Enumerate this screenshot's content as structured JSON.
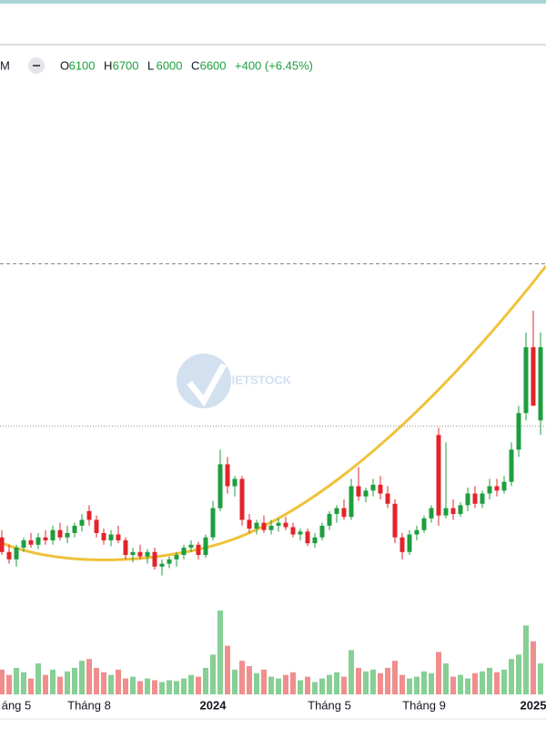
{
  "chart_data": {
    "type": "candlestick",
    "symbol": "M",
    "ohlc": [
      {
        "label": "O",
        "value": 6100
      },
      {
        "label": "H",
        "value": 6700
      },
      {
        "label": "L",
        "value": 6000
      },
      {
        "label": "C",
        "value": 6600
      }
    ],
    "change": "+400 (+6.45%)",
    "watermark": "VIETSTOCK",
    "categories": [
      null,
      null,
      "áng 5",
      null,
      null,
      null,
      null,
      null,
      null,
      null,
      null,
      null,
      "Tháng 8",
      null,
      null,
      null,
      null,
      null,
      null,
      null,
      null,
      null,
      null,
      null,
      null,
      null,
      null,
      null,
      null,
      "2024",
      null,
      null,
      null,
      null,
      null,
      null,
      null,
      null,
      null,
      null,
      null,
      null,
      null,
      null,
      null,
      "Tháng 5",
      null,
      null,
      null,
      null,
      null,
      null,
      null,
      null,
      null,
      null,
      null,
      null,
      "Tháng 9",
      null,
      null,
      null,
      null,
      null,
      null,
      null,
      null,
      null,
      null,
      null,
      null,
      null,
      null,
      "2025",
      null
    ],
    "candles": [
      [
        5300,
        5350,
        5180,
        5200
      ],
      [
        5200,
        5250,
        5120,
        5150
      ],
      [
        5150,
        5250,
        5100,
        5230
      ],
      [
        5230,
        5300,
        5200,
        5280
      ],
      [
        5280,
        5330,
        5230,
        5250
      ],
      [
        5250,
        5330,
        5220,
        5300
      ],
      [
        5300,
        5350,
        5250,
        5280
      ],
      [
        5280,
        5380,
        5250,
        5350
      ],
      [
        5350,
        5400,
        5280,
        5300
      ],
      [
        5300,
        5380,
        5260,
        5330
      ],
      [
        5330,
        5400,
        5300,
        5380
      ],
      [
        5380,
        5460,
        5340,
        5420
      ],
      [
        5480,
        5520,
        5380,
        5420
      ],
      [
        5420,
        5450,
        5300,
        5330
      ],
      [
        5330,
        5360,
        5250,
        5280
      ],
      [
        5280,
        5350,
        5240,
        5320
      ],
      [
        5320,
        5380,
        5260,
        5280
      ],
      [
        5280,
        5300,
        5150,
        5180
      ],
      [
        5180,
        5230,
        5130,
        5200
      ],
      [
        5200,
        5250,
        5150,
        5170
      ],
      [
        5170,
        5220,
        5120,
        5200
      ],
      [
        5200,
        5230,
        5080,
        5100
      ],
      [
        5100,
        5150,
        5040,
        5120
      ],
      [
        5120,
        5170,
        5090,
        5150
      ],
      [
        5150,
        5200,
        5100,
        5180
      ],
      [
        5180,
        5250,
        5150,
        5230
      ],
      [
        5230,
        5280,
        5200,
        5250
      ],
      [
        5250,
        5270,
        5150,
        5180
      ],
      [
        5180,
        5320,
        5160,
        5300
      ],
      [
        5300,
        5550,
        5280,
        5500
      ],
      [
        5500,
        5900,
        5480,
        5800
      ],
      [
        5800,
        5850,
        5600,
        5650
      ],
      [
        5650,
        5720,
        5580,
        5700
      ],
      [
        5700,
        5720,
        5380,
        5420
      ],
      [
        5420,
        5460,
        5330,
        5360
      ],
      [
        5360,
        5420,
        5320,
        5400
      ],
      [
        5400,
        5450,
        5330,
        5350
      ],
      [
        5350,
        5420,
        5320,
        5380
      ],
      [
        5380,
        5430,
        5340,
        5400
      ],
      [
        5400,
        5440,
        5350,
        5370
      ],
      [
        5370,
        5400,
        5300,
        5320
      ],
      [
        5320,
        5360,
        5280,
        5340
      ],
      [
        5340,
        5360,
        5240,
        5260
      ],
      [
        5260,
        5330,
        5230,
        5300
      ],
      [
        5300,
        5400,
        5280,
        5380
      ],
      [
        5380,
        5480,
        5350,
        5460
      ],
      [
        5460,
        5520,
        5400,
        5500
      ],
      [
        5500,
        5560,
        5420,
        5440
      ],
      [
        5440,
        5700,
        5420,
        5650
      ],
      [
        5650,
        5780,
        5550,
        5580
      ],
      [
        5580,
        5640,
        5540,
        5620
      ],
      [
        5620,
        5700,
        5580,
        5660
      ],
      [
        5660,
        5720,
        5560,
        5600
      ],
      [
        5600,
        5650,
        5500,
        5530
      ],
      [
        5530,
        5560,
        5260,
        5300
      ],
      [
        5300,
        5330,
        5150,
        5200
      ],
      [
        5200,
        5350,
        5180,
        5320
      ],
      [
        5320,
        5380,
        5280,
        5350
      ],
      [
        5350,
        5450,
        5330,
        5430
      ],
      [
        5430,
        5520,
        5400,
        5500
      ],
      [
        6000,
        6050,
        5380,
        5450
      ],
      [
        5450,
        5950,
        5430,
        5500
      ],
      [
        5500,
        5560,
        5420,
        5460
      ],
      [
        5460,
        5540,
        5440,
        5520
      ],
      [
        5520,
        5640,
        5480,
        5600
      ],
      [
        5600,
        5650,
        5500,
        5530
      ],
      [
        5530,
        5620,
        5500,
        5600
      ],
      [
        5600,
        5700,
        5560,
        5650
      ],
      [
        5650,
        5700,
        5580,
        5620
      ],
      [
        5620,
        5720,
        5600,
        5680
      ],
      [
        5680,
        5950,
        5650,
        5900
      ],
      [
        5900,
        6200,
        5850,
        6150
      ],
      [
        6150,
        6700,
        6100,
        6600
      ],
      [
        6600,
        6850,
        6200,
        6200
      ],
      [
        6100,
        6700,
        6000,
        6600
      ]
    ],
    "volume": [
      28,
      22,
      30,
      25,
      18,
      35,
      22,
      28,
      20,
      26,
      30,
      38,
      40,
      30,
      25,
      22,
      28,
      18,
      20,
      15,
      18,
      16,
      14,
      16,
      15,
      18,
      22,
      20,
      30,
      45,
      95,
      55,
      28,
      38,
      32,
      24,
      28,
      20,
      18,
      22,
      25,
      16,
      20,
      14,
      18,
      22,
      25,
      20,
      50,
      30,
      26,
      28,
      24,
      30,
      38,
      22,
      18,
      20,
      26,
      24,
      48,
      35,
      20,
      22,
      18,
      24,
      26,
      30,
      25,
      28,
      40,
      45,
      78,
      60,
      35
    ],
    "ylim": [
      4800,
      8600
    ],
    "volume_ylim": [
      0,
      100
    ],
    "hlines": [
      {
        "value": 7170,
        "style": "dashed"
      },
      {
        "value": 6060,
        "style": "dotted"
      }
    ],
    "up_color": "#1e9e3e",
    "down_color": "#e3242b",
    "volume_up_color": "#86cf95",
    "volume_down_color": "#f08e8e",
    "curve_color": "#efc23a"
  }
}
